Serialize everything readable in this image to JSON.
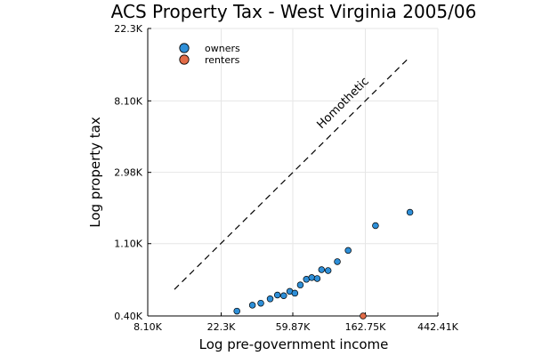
{
  "chart_data": {
    "type": "scatter",
    "title": "ACS Property Tax - West Virginia 2005/06",
    "xlabel": "Log pre-government income",
    "ylabel": "Log property tax",
    "x_scale": "log",
    "y_scale": "log",
    "xlim": [
      8100,
      442410
    ],
    "ylim": [
      400,
      22300
    ],
    "x_ticks": [
      {
        "value": 8100,
        "label": "8.10K"
      },
      {
        "value": 22300,
        "label": "22.3K"
      },
      {
        "value": 59870,
        "label": "59.87K"
      },
      {
        "value": 162750,
        "label": "162.75K"
      },
      {
        "value": 442410,
        "label": "442.41K"
      }
    ],
    "y_ticks": [
      {
        "value": 400,
        "label": "0.40K"
      },
      {
        "value": 1100,
        "label": "1.10K"
      },
      {
        "value": 2980,
        "label": "2.98K"
      },
      {
        "value": 8100,
        "label": "8.10K"
      },
      {
        "value": 22300,
        "label": "22.3K"
      }
    ],
    "grid": true,
    "legend_position": "top-left",
    "series": [
      {
        "name": "owners",
        "color": "#2E8FD8",
        "points": [
          {
            "x": 27700,
            "y": 428
          },
          {
            "x": 34300,
            "y": 465
          },
          {
            "x": 38500,
            "y": 478
          },
          {
            "x": 43800,
            "y": 508
          },
          {
            "x": 48400,
            "y": 536
          },
          {
            "x": 52800,
            "y": 531
          },
          {
            "x": 57400,
            "y": 564
          },
          {
            "x": 61600,
            "y": 550
          },
          {
            "x": 66400,
            "y": 617
          },
          {
            "x": 72200,
            "y": 668
          },
          {
            "x": 77700,
            "y": 684
          },
          {
            "x": 83800,
            "y": 675
          },
          {
            "x": 89000,
            "y": 764
          },
          {
            "x": 97400,
            "y": 755
          },
          {
            "x": 110600,
            "y": 855
          },
          {
            "x": 128400,
            "y": 1000
          },
          {
            "x": 187200,
            "y": 1415
          },
          {
            "x": 301000,
            "y": 1705
          }
        ]
      },
      {
        "name": "renters",
        "color": "#E26B47",
        "points": [
          {
            "x": 157700,
            "y": 400
          }
        ]
      }
    ],
    "reference_line": {
      "label": "Homothetic",
      "style": "dashed",
      "color": "#000000",
      "points": [
        {
          "x": 11700,
          "y": 580
        },
        {
          "x": 301000,
          "y": 15000
        }
      ]
    }
  }
}
